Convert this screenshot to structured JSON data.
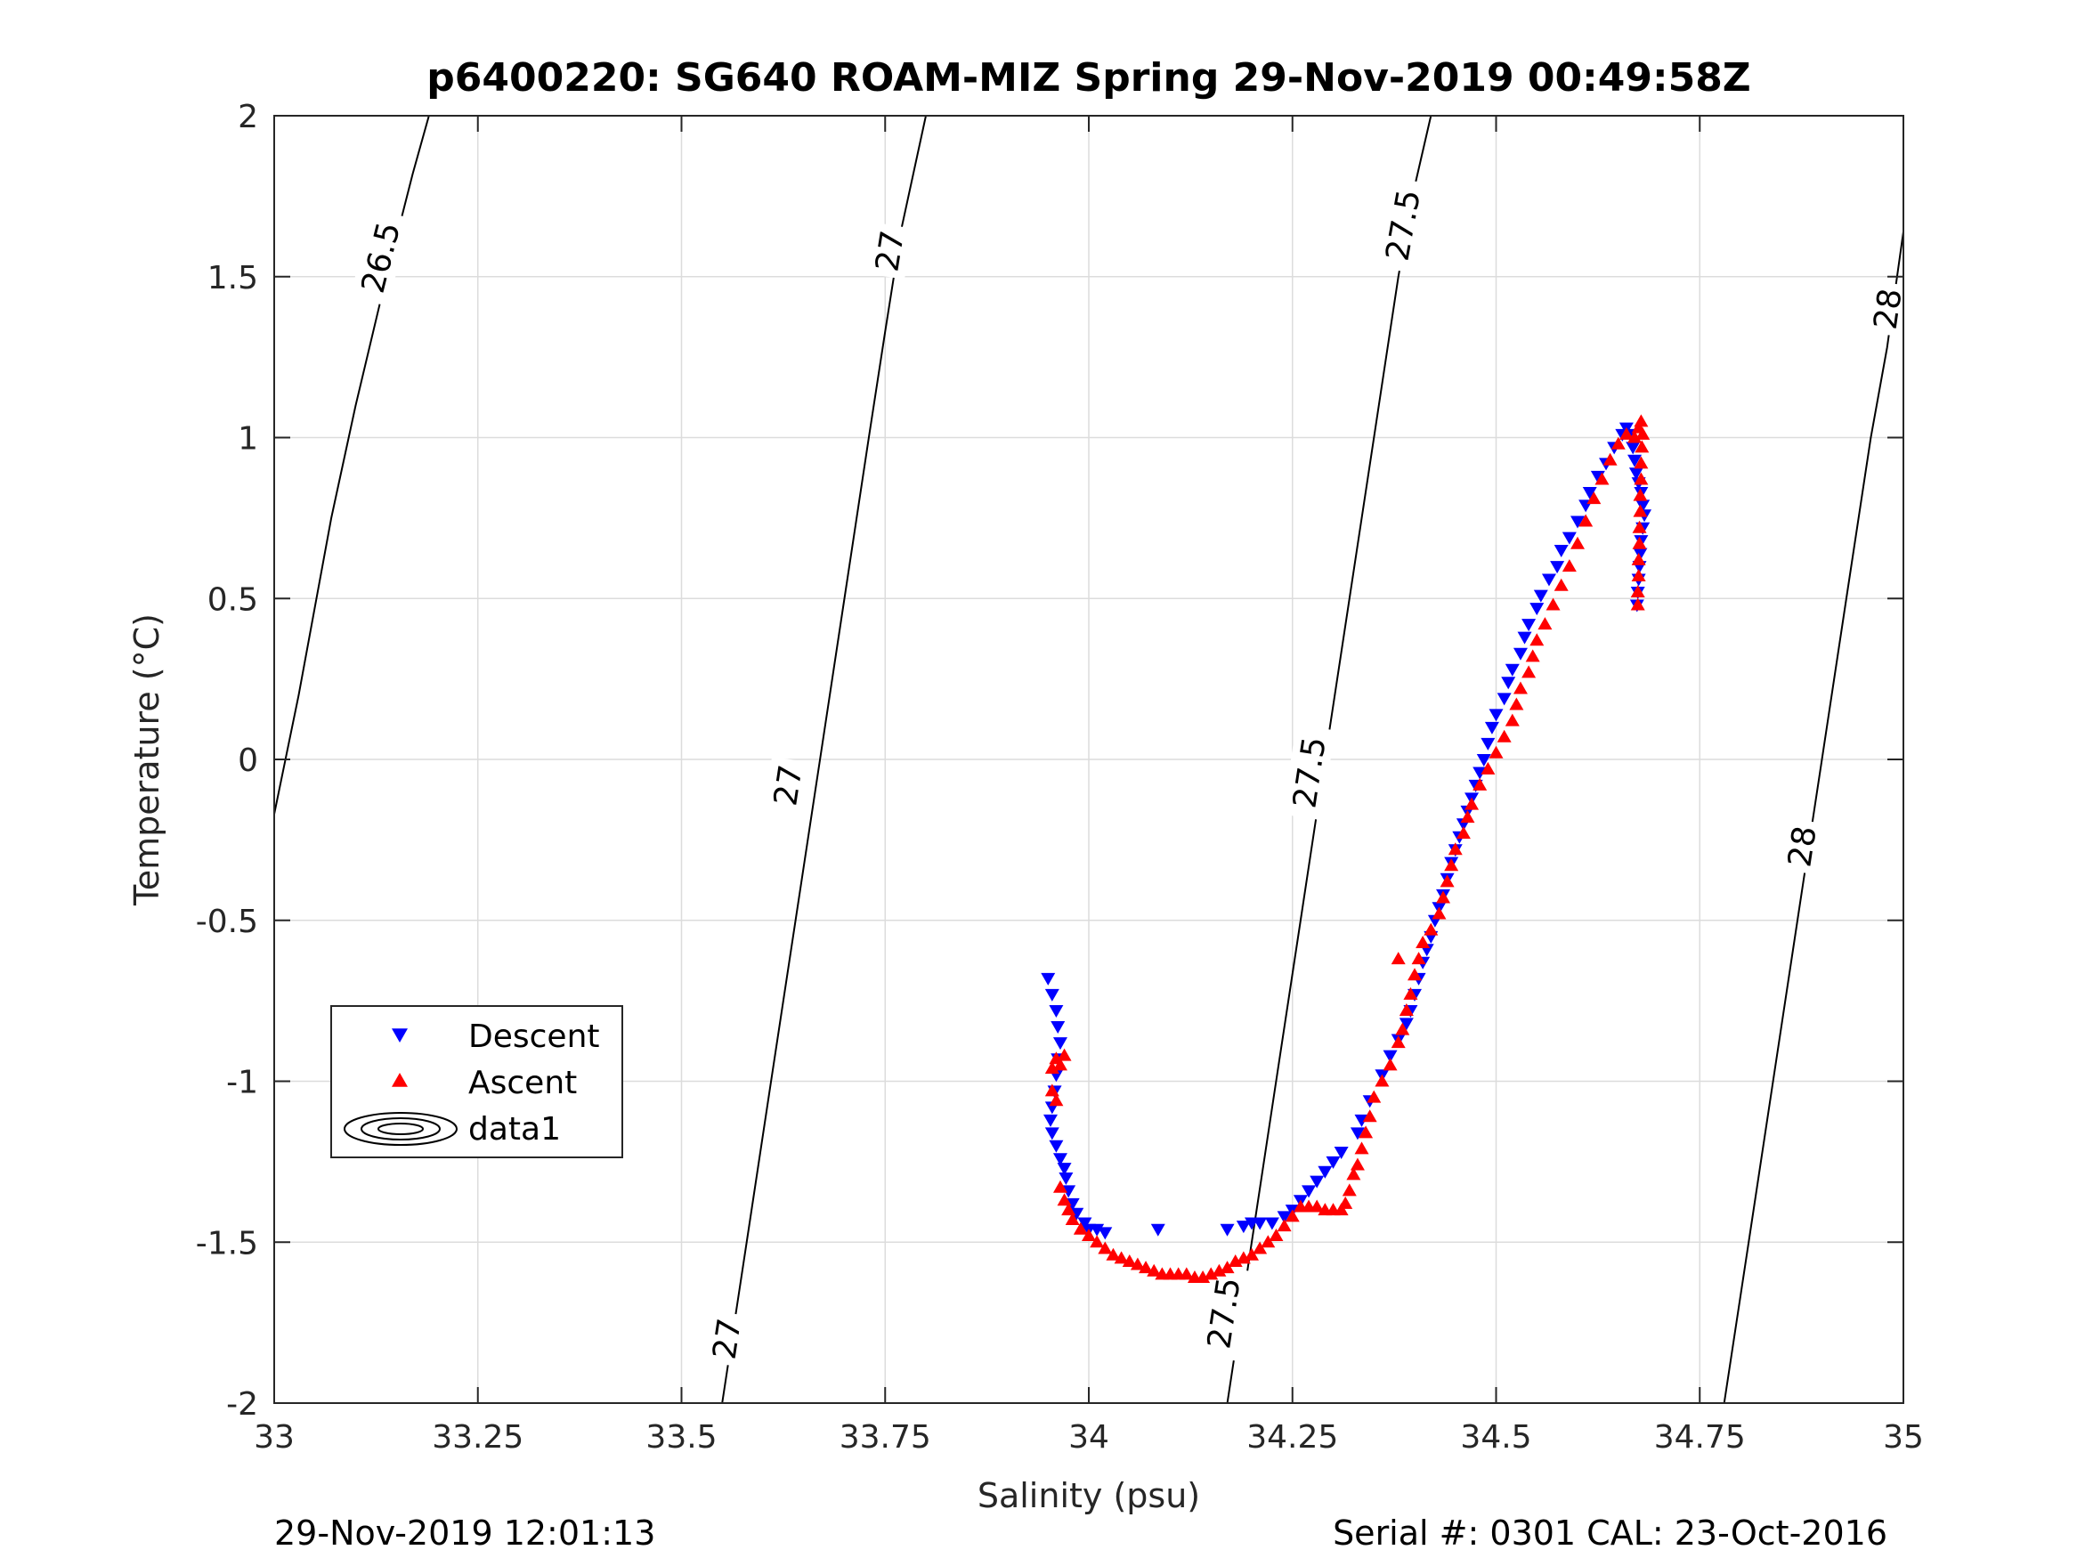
{
  "chart_data": {
    "type": "scatter",
    "title": "p6400220: SG640 ROAM-MIZ Spring 29-Nov-2019 00:49:58Z",
    "xlabel": "Salinity (psu)",
    "ylabel": "Temperature (°C)",
    "xlim": [
      33,
      35
    ],
    "ylim": [
      -2,
      2
    ],
    "xticks": [
      33,
      33.25,
      33.5,
      33.75,
      34,
      34.25,
      34.5,
      34.75,
      35
    ],
    "xtick_labels": [
      "33",
      "33.25",
      "33.5",
      "33.75",
      "34",
      "34.25",
      "34.5",
      "34.75",
      "35"
    ],
    "yticks": [
      -2,
      -1.5,
      -1,
      -0.5,
      0,
      0.5,
      1,
      1.5,
      2
    ],
    "ytick_labels": [
      "-2",
      "-1.5",
      "-1",
      "-0.5",
      "0",
      "0.5",
      "1",
      "1.5",
      "2"
    ],
    "grid": true,
    "legend_position": "lower-left",
    "series": [
      {
        "name": "Descent",
        "marker": "triangle-down",
        "color": "#0000ff",
        "points": [
          [
            33.95,
            -0.68
          ],
          [
            33.955,
            -0.73
          ],
          [
            33.96,
            -0.78
          ],
          [
            33.962,
            -0.83
          ],
          [
            33.965,
            -0.88
          ],
          [
            33.962,
            -0.93
          ],
          [
            33.96,
            -0.98
          ],
          [
            33.958,
            -1.03
          ],
          [
            33.955,
            -1.08
          ],
          [
            33.953,
            -1.12
          ],
          [
            33.955,
            -1.16
          ],
          [
            33.96,
            -1.2
          ],
          [
            33.965,
            -1.24
          ],
          [
            33.97,
            -1.27
          ],
          [
            33.972,
            -1.3
          ],
          [
            33.975,
            -1.34
          ],
          [
            33.98,
            -1.38
          ],
          [
            33.985,
            -1.41
          ],
          [
            33.995,
            -1.44
          ],
          [
            34.0,
            -1.46
          ],
          [
            34.01,
            -1.46
          ],
          [
            34.02,
            -1.47
          ],
          [
            34.085,
            -1.46
          ],
          [
            34.17,
            -1.46
          ],
          [
            34.19,
            -1.45
          ],
          [
            34.2,
            -1.44
          ],
          [
            34.21,
            -1.44
          ],
          [
            34.225,
            -1.44
          ],
          [
            34.24,
            -1.42
          ],
          [
            34.25,
            -1.4
          ],
          [
            34.26,
            -1.37
          ],
          [
            34.27,
            -1.34
          ],
          [
            34.28,
            -1.31
          ],
          [
            34.29,
            -1.28
          ],
          [
            34.3,
            -1.25
          ],
          [
            34.31,
            -1.22
          ],
          [
            34.33,
            -1.16
          ],
          [
            34.335,
            -1.12
          ],
          [
            34.345,
            -1.06
          ],
          [
            34.36,
            -0.98
          ],
          [
            34.37,
            -0.92
          ],
          [
            34.38,
            -0.87
          ],
          [
            34.39,
            -0.82
          ],
          [
            34.395,
            -0.78
          ],
          [
            34.4,
            -0.73
          ],
          [
            34.405,
            -0.68
          ],
          [
            34.41,
            -0.63
          ],
          [
            34.415,
            -0.59
          ],
          [
            34.42,
            -0.55
          ],
          [
            34.425,
            -0.5
          ],
          [
            34.43,
            -0.46
          ],
          [
            34.435,
            -0.42
          ],
          [
            34.44,
            -0.37
          ],
          [
            34.445,
            -0.32
          ],
          [
            34.45,
            -0.28
          ],
          [
            34.455,
            -0.24
          ],
          [
            34.46,
            -0.2
          ],
          [
            34.465,
            -0.16
          ],
          [
            34.47,
            -0.12
          ],
          [
            34.475,
            -0.08
          ],
          [
            34.48,
            -0.04
          ],
          [
            34.485,
            0.0
          ],
          [
            34.49,
            0.05
          ],
          [
            34.495,
            0.1
          ],
          [
            34.5,
            0.14
          ],
          [
            34.51,
            0.19
          ],
          [
            34.515,
            0.24
          ],
          [
            34.52,
            0.28
          ],
          [
            34.53,
            0.33
          ],
          [
            34.535,
            0.38
          ],
          [
            34.54,
            0.42
          ],
          [
            34.55,
            0.47
          ],
          [
            34.555,
            0.51
          ],
          [
            34.565,
            0.56
          ],
          [
            34.575,
            0.6
          ],
          [
            34.58,
            0.65
          ],
          [
            34.59,
            0.69
          ],
          [
            34.6,
            0.74
          ],
          [
            34.61,
            0.79
          ],
          [
            34.615,
            0.83
          ],
          [
            34.625,
            0.88
          ],
          [
            34.635,
            0.92
          ],
          [
            34.645,
            0.97
          ],
          [
            34.655,
            1.01
          ],
          [
            34.66,
            1.03
          ],
          [
            34.665,
            1.01
          ],
          [
            34.668,
            0.97
          ],
          [
            34.67,
            0.93
          ],
          [
            34.672,
            0.89
          ],
          [
            34.675,
            0.86
          ],
          [
            34.678,
            0.83
          ],
          [
            34.68,
            0.79
          ],
          [
            34.682,
            0.76
          ],
          [
            34.68,
            0.72
          ],
          [
            34.678,
            0.68
          ],
          [
            34.677,
            0.64
          ],
          [
            34.676,
            0.6
          ],
          [
            34.675,
            0.56
          ],
          [
            34.674,
            0.52
          ],
          [
            34.673,
            0.48
          ]
        ]
      },
      {
        "name": "Ascent",
        "marker": "triangle-up",
        "color": "#ff0000",
        "points": [
          [
            33.96,
            -0.93
          ],
          [
            33.965,
            -0.95
          ],
          [
            33.97,
            -0.92
          ],
          [
            33.955,
            -0.96
          ],
          [
            33.955,
            -1.03
          ],
          [
            33.96,
            -1.06
          ],
          [
            33.965,
            -1.33
          ],
          [
            33.97,
            -1.37
          ],
          [
            33.975,
            -1.4
          ],
          [
            33.98,
            -1.43
          ],
          [
            33.99,
            -1.46
          ],
          [
            34.0,
            -1.48
          ],
          [
            34.01,
            -1.5
          ],
          [
            34.02,
            -1.52
          ],
          [
            34.03,
            -1.54
          ],
          [
            34.04,
            -1.55
          ],
          [
            34.05,
            -1.56
          ],
          [
            34.06,
            -1.57
          ],
          [
            34.07,
            -1.58
          ],
          [
            34.08,
            -1.59
          ],
          [
            34.09,
            -1.6
          ],
          [
            34.1,
            -1.6
          ],
          [
            34.11,
            -1.6
          ],
          [
            34.12,
            -1.6
          ],
          [
            34.13,
            -1.61
          ],
          [
            34.14,
            -1.61
          ],
          [
            34.15,
            -1.6
          ],
          [
            34.16,
            -1.59
          ],
          [
            34.17,
            -1.58
          ],
          [
            34.18,
            -1.56
          ],
          [
            34.19,
            -1.55
          ],
          [
            34.2,
            -1.54
          ],
          [
            34.21,
            -1.52
          ],
          [
            34.22,
            -1.5
          ],
          [
            34.23,
            -1.48
          ],
          [
            34.24,
            -1.45
          ],
          [
            34.25,
            -1.42
          ],
          [
            34.26,
            -1.39
          ],
          [
            34.27,
            -1.39
          ],
          [
            34.28,
            -1.39
          ],
          [
            34.29,
            -1.4
          ],
          [
            34.3,
            -1.4
          ],
          [
            34.31,
            -1.4
          ],
          [
            34.315,
            -1.38
          ],
          [
            34.32,
            -1.34
          ],
          [
            34.325,
            -1.29
          ],
          [
            34.33,
            -1.26
          ],
          [
            34.335,
            -1.21
          ],
          [
            34.34,
            -1.16
          ],
          [
            34.345,
            -1.11
          ],
          [
            34.35,
            -1.05
          ],
          [
            34.36,
            -1.0
          ],
          [
            34.37,
            -0.95
          ],
          [
            34.38,
            -0.88
          ],
          [
            34.385,
            -0.84
          ],
          [
            34.39,
            -0.78
          ],
          [
            34.395,
            -0.73
          ],
          [
            34.4,
            -0.67
          ],
          [
            34.38,
            -0.62
          ],
          [
            34.405,
            -0.62
          ],
          [
            34.41,
            -0.57
          ],
          [
            34.42,
            -0.53
          ],
          [
            34.43,
            -0.48
          ],
          [
            34.435,
            -0.43
          ],
          [
            34.44,
            -0.38
          ],
          [
            34.445,
            -0.33
          ],
          [
            34.45,
            -0.28
          ],
          [
            34.46,
            -0.23
          ],
          [
            34.465,
            -0.18
          ],
          [
            34.47,
            -0.14
          ],
          [
            34.48,
            -0.08
          ],
          [
            34.49,
            -0.03
          ],
          [
            34.5,
            0.02
          ],
          [
            34.51,
            0.07
          ],
          [
            34.52,
            0.12
          ],
          [
            34.525,
            0.17
          ],
          [
            34.53,
            0.22
          ],
          [
            34.54,
            0.27
          ],
          [
            34.545,
            0.32
          ],
          [
            34.55,
            0.37
          ],
          [
            34.56,
            0.42
          ],
          [
            34.57,
            0.48
          ],
          [
            34.58,
            0.54
          ],
          [
            34.59,
            0.6
          ],
          [
            34.6,
            0.67
          ],
          [
            34.61,
            0.74
          ],
          [
            34.62,
            0.81
          ],
          [
            34.63,
            0.87
          ],
          [
            34.64,
            0.93
          ],
          [
            34.65,
            0.98
          ],
          [
            34.66,
            1.01
          ],
          [
            34.67,
            1.0
          ],
          [
            34.675,
            1.03
          ],
          [
            34.678,
            1.05
          ],
          [
            34.68,
            1.01
          ],
          [
            34.679,
            0.97
          ],
          [
            34.678,
            0.92
          ],
          [
            34.678,
            0.87
          ],
          [
            34.677,
            0.82
          ],
          [
            34.677,
            0.77
          ],
          [
            34.676,
            0.72
          ],
          [
            34.676,
            0.67
          ],
          [
            34.675,
            0.62
          ],
          [
            34.675,
            0.57
          ],
          [
            34.674,
            0.52
          ],
          [
            34.674,
            0.48
          ]
        ]
      }
    ],
    "contours": [
      {
        "level": "26.5",
        "points": [
          [
            33.0,
            -0.17
          ],
          [
            33.03,
            0.2
          ],
          [
            33.07,
            0.75
          ],
          [
            33.1,
            1.1
          ],
          [
            33.13,
            1.42
          ],
          [
            33.16,
            1.72
          ],
          [
            33.17,
            1.82
          ],
          [
            33.19,
            2.0
          ]
        ],
        "labels": [
          [
            33.13,
            1.56
          ]
        ]
      },
      {
        "level": "27",
        "points": [
          [
            33.55,
            -2.0
          ],
          [
            33.58,
            -1.5
          ],
          [
            33.61,
            -1.0
          ],
          [
            33.64,
            -0.5
          ],
          [
            33.67,
            0.0
          ],
          [
            33.7,
            0.5
          ],
          [
            33.73,
            1.0
          ],
          [
            33.75,
            1.33
          ],
          [
            33.77,
            1.65
          ],
          [
            33.8,
            2.0
          ]
        ],
        "labels": [
          [
            33.555,
            -1.8
          ],
          [
            33.63,
            -0.08
          ],
          [
            33.755,
            1.58
          ]
        ]
      },
      {
        "level": "27.5",
        "points": [
          [
            34.17,
            -2.0
          ],
          [
            34.2,
            -1.5
          ],
          [
            34.23,
            -1.0
          ],
          [
            34.26,
            -0.5
          ],
          [
            34.29,
            0.0
          ],
          [
            34.32,
            0.5
          ],
          [
            34.35,
            1.0
          ],
          [
            34.38,
            1.5
          ],
          [
            34.4,
            1.78
          ],
          [
            34.42,
            2.0
          ]
        ],
        "labels": [
          [
            34.165,
            -1.72
          ],
          [
            34.27,
            -0.04
          ],
          [
            34.385,
            1.66
          ]
        ]
      },
      {
        "level": "28",
        "points": [
          [
            34.78,
            -2.0
          ],
          [
            34.81,
            -1.5
          ],
          [
            34.84,
            -1.0
          ],
          [
            34.87,
            -0.5
          ],
          [
            34.9,
            0.0
          ],
          [
            34.93,
            0.5
          ],
          [
            34.96,
            1.0
          ],
          [
            34.98,
            1.28
          ],
          [
            35.0,
            1.64
          ]
        ],
        "labels": [
          [
            34.875,
            -0.27
          ],
          [
            34.98,
            1.4
          ]
        ]
      }
    ],
    "legend": {
      "entries": [
        {
          "label": "Descent",
          "marker": "triangle-down",
          "color": "#0000ff"
        },
        {
          "label": "Ascent",
          "marker": "triangle-up",
          "color": "#ff0000"
        },
        {
          "label": "data1",
          "marker": "contour",
          "color": "#000000"
        }
      ]
    }
  },
  "footer": {
    "left": "29-Nov-2019 12:01:13",
    "right": "Serial #: 0301  CAL: 23-Oct-2016"
  }
}
